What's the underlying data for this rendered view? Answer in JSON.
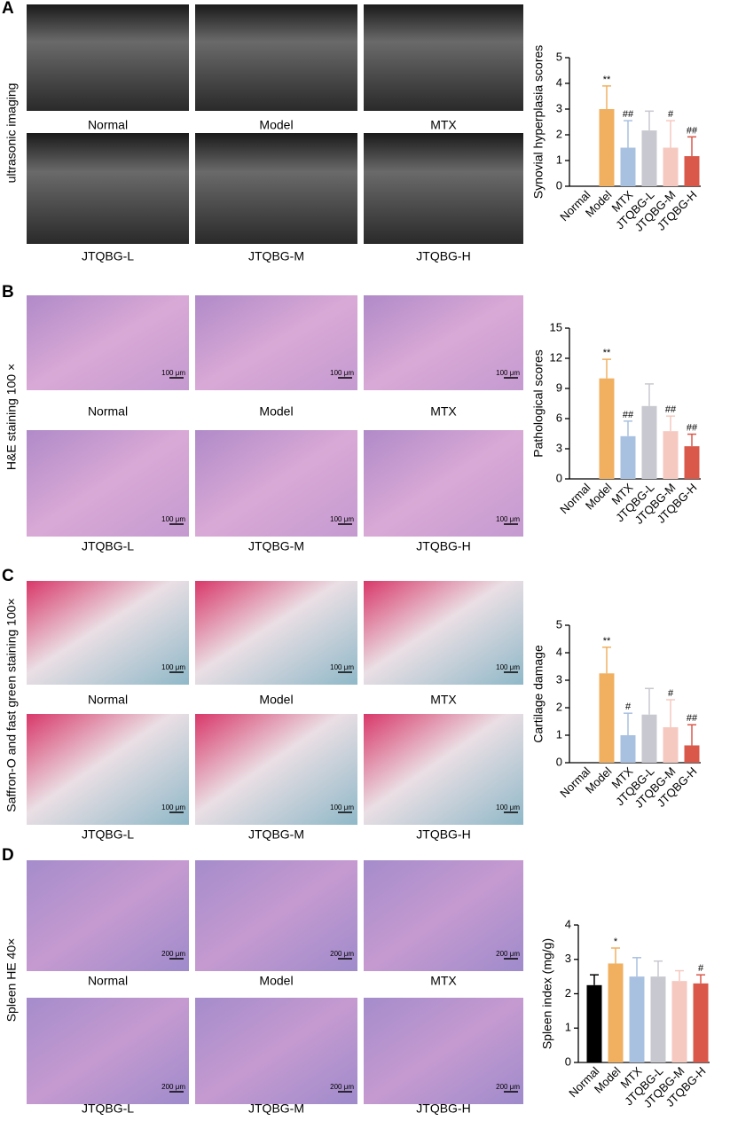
{
  "panels": [
    {
      "letter": "A",
      "side_label": "ultrasonic imaging",
      "captions": [
        "Normal",
        "Model",
        "MTX",
        "JTQBG-L",
        "JTQBG-M",
        "JTQBG-H"
      ]
    },
    {
      "letter": "B",
      "side_label": "H&E staining 100 ×",
      "scale_bar": "100 μm",
      "captions": [
        "Normal",
        "Model",
        "MTX",
        "JTQBG-L",
        "JTQBG-M",
        "JTQBG-H"
      ]
    },
    {
      "letter": "C",
      "side_label": "Saffron-O and fast green staining 100×",
      "scale_bar": "100 μm",
      "captions": [
        "Normal",
        "Model",
        "MTX",
        "JTQBG-L",
        "JTQBG-M",
        "JTQBG-H"
      ]
    },
    {
      "letter": "D",
      "side_label": "Spleen HE 40×",
      "scale_bar": "200 μm",
      "captions": [
        "Normal",
        "Model",
        "MTX",
        "JTQBG-L",
        "JTQBG-M",
        "JTQBG-H"
      ]
    }
  ],
  "chart_data": [
    {
      "type": "bar",
      "y_label": "Synovial hyperplasia scores",
      "categories": [
        "Normal",
        "Model",
        "MTX",
        "JTQBG-L",
        "JTQBG-M",
        "JTQBG-H"
      ],
      "values": [
        0,
        3,
        1.5,
        2.17,
        1.5,
        1.17
      ],
      "errors": [
        0,
        0.9,
        1.05,
        0.75,
        1.05,
        0.75
      ],
      "annotations": [
        null,
        "**",
        "##",
        null,
        "#",
        "##"
      ],
      "colors": [
        "#000000",
        "#f0b060",
        "#a9c1e0",
        "#c8c8d0",
        "#f5c9c0",
        "#d9584a"
      ],
      "ylim": [
        0,
        5
      ],
      "yticks": [
        0,
        1,
        2,
        3,
        4,
        5
      ],
      "grid": false
    },
    {
      "type": "bar",
      "y_label": "Pathological scores",
      "categories": [
        "Normal",
        "Model",
        "MTX",
        "JTQBG-L",
        "JTQBG-M",
        "JTQBG-H"
      ],
      "values": [
        0,
        10,
        4.25,
        7.25,
        4.75,
        3.25
      ],
      "errors": [
        0,
        1.9,
        1.5,
        2.2,
        1.5,
        1.2
      ],
      "annotations": [
        null,
        "**",
        "##",
        null,
        "##",
        "##"
      ],
      "colors": [
        "#000000",
        "#f0b060",
        "#a9c1e0",
        "#c8c8d0",
        "#f5c9c0",
        "#d9584a"
      ],
      "ylim": [
        0,
        15
      ],
      "yticks": [
        0,
        3,
        6,
        9,
        12,
        15
      ],
      "grid": false
    },
    {
      "type": "bar",
      "y_label": "Cartilage damage",
      "categories": [
        "Normal",
        "Model",
        "MTX",
        "JTQBG-L",
        "JTQBG-M",
        "JTQBG-H"
      ],
      "values": [
        0,
        3.25,
        1,
        1.75,
        1.29,
        0.63
      ],
      "errors": [
        0,
        0.95,
        0.8,
        0.95,
        1,
        0.75
      ],
      "annotations": [
        null,
        "**",
        "#",
        null,
        "#",
        "##"
      ],
      "colors": [
        "#000000",
        "#f0b060",
        "#a9c1e0",
        "#c8c8d0",
        "#f5c9c0",
        "#d9584a"
      ],
      "ylim": [
        0,
        5
      ],
      "yticks": [
        0,
        1,
        2,
        3,
        4,
        5
      ],
      "grid": false
    },
    {
      "type": "bar",
      "y_label": "Spleen index (mg/g)",
      "categories": [
        "Normal",
        "Model",
        "MTX",
        "JTQBG-L",
        "JTQBG-M",
        "JTQBG-H"
      ],
      "values": [
        2.25,
        2.88,
        2.5,
        2.5,
        2.37,
        2.3
      ],
      "errors": [
        0.3,
        0.45,
        0.55,
        0.45,
        0.3,
        0.25
      ],
      "annotations": [
        null,
        "*",
        null,
        null,
        null,
        "#"
      ],
      "colors": [
        "#000000",
        "#f0b060",
        "#a9c1e0",
        "#c8c8d0",
        "#f5c9c0",
        "#d9584a"
      ],
      "ylim": [
        0,
        4
      ],
      "yticks": [
        0,
        1,
        2,
        3,
        4
      ],
      "grid": false
    }
  ]
}
